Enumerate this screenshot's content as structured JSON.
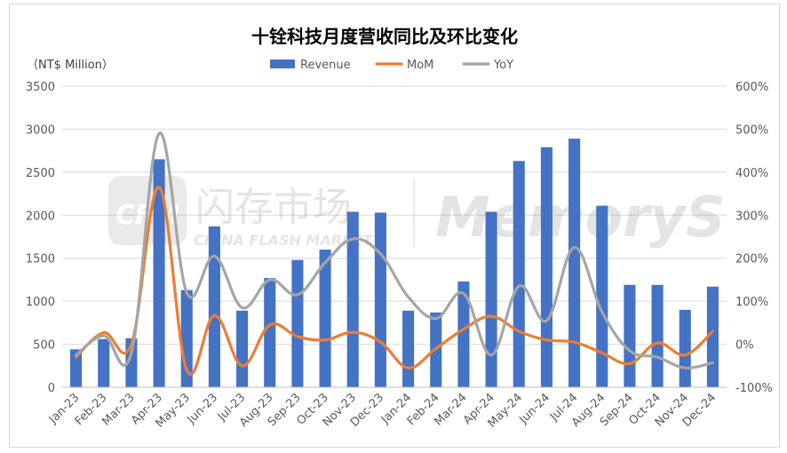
{
  "chart_data": {
    "type": "bar",
    "title": "十铨科技月度营收同比及环比变化",
    "ylabel": "（NT$ Million）",
    "categories": [
      "Jan-23",
      "Feb-23",
      "Mar-23",
      "Apr-23",
      "May-23",
      "Jun-23",
      "Jul-23",
      "Aug-23",
      "Sep-23",
      "Oct-23",
      "Nov-23",
      "Dec-23",
      "Jan-24",
      "Feb-24",
      "Mar-24",
      "Apr-24",
      "May-24",
      "Jun-24",
      "Jul-24",
      "Aug-24",
      "Sep-24",
      "Oct-24",
      "Nov-24",
      "Dec-24"
    ],
    "ylim": [
      0,
      3500
    ],
    "y2lim": [
      -100,
      600
    ],
    "yticks": [
      "0",
      "500",
      "1000",
      "1500",
      "2000",
      "2500",
      "3000",
      "3500"
    ],
    "y2ticks": [
      "-100%",
      "0%",
      "100%",
      "200%",
      "300%",
      "400%",
      "500%",
      "600%"
    ],
    "grid": true,
    "legend_position": "top",
    "series": [
      {
        "name": "Revenue",
        "type": "bar",
        "axis": "left",
        "color": "#4472C4",
        "values": [
          440,
          560,
          570,
          2650,
          1130,
          1870,
          890,
          1270,
          1480,
          1600,
          2040,
          2030,
          890,
          870,
          1230,
          2040,
          2630,
          2790,
          2890,
          2110,
          1190,
          1190,
          900,
          1170
        ]
      },
      {
        "name": "MoM",
        "type": "line",
        "axis": "right",
        "color": "#ED7D31",
        "values": [
          -30,
          27,
          0,
          365,
          -60,
          67,
          -50,
          45,
          18,
          10,
          28,
          5,
          -55,
          -10,
          35,
          65,
          30,
          10,
          5,
          -20,
          -45,
          3,
          -25,
          30
        ]
      },
      {
        "name": "YoY",
        "type": "line",
        "axis": "right",
        "color": "#A5A5A5",
        "values": [
          -25,
          20,
          -20,
          490,
          120,
          205,
          85,
          150,
          115,
          190,
          245,
          210,
          110,
          60,
          118,
          -25,
          135,
          55,
          225,
          75,
          -15,
          -30,
          -55,
          -43
        ]
      }
    ]
  },
  "watermark": {
    "logo_text": "CFM",
    "cn_text": "闪存市场",
    "en_text": "CHINA FLASH MARKET",
    "brand_text": "MemoryS"
  }
}
